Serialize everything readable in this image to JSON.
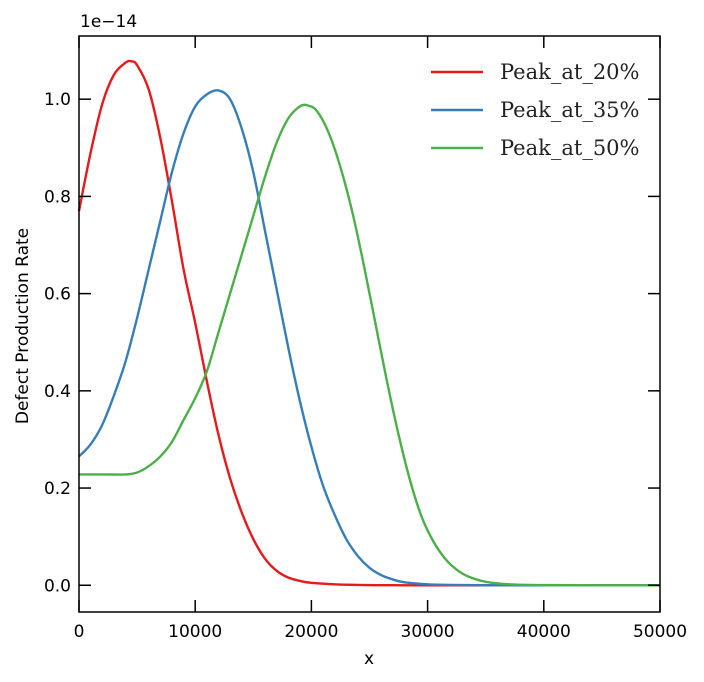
{
  "chart_data": {
    "type": "line",
    "title": "",
    "xlabel": "x",
    "ylabel": "Defect Production Rate",
    "y_offset_label": "1e−14",
    "xlim": [
      0,
      50000
    ],
    "ylim": [
      -0.055,
      1.13
    ],
    "x_ticks": [
      0,
      10000,
      20000,
      30000,
      40000,
      50000
    ],
    "x_tick_labels": [
      "0",
      "10000",
      "20000",
      "30000",
      "40000",
      "50000"
    ],
    "y_ticks": [
      0.0,
      0.2,
      0.4,
      0.6,
      0.8,
      1.0
    ],
    "y_tick_labels": [
      "0.0",
      "0.2",
      "0.4",
      "0.6",
      "0.8",
      "1.0"
    ],
    "grid": false,
    "legend_position": "top-right",
    "series": [
      {
        "name": "Peak_at_20%",
        "color": "#e41a1c",
        "x": [
          0,
          1000,
          2000,
          3000,
          4000,
          4500,
          5000,
          6000,
          7000,
          8000,
          9000,
          10000,
          11000,
          12000,
          13000,
          14000,
          15000,
          16000,
          17000,
          18000,
          19000,
          20000,
          22000,
          24000,
          26000,
          28000,
          30000,
          35000,
          40000,
          45000,
          50000
        ],
        "y": [
          0.77,
          0.89,
          0.99,
          1.05,
          1.075,
          1.078,
          1.07,
          1.02,
          0.92,
          0.79,
          0.65,
          0.54,
          0.42,
          0.31,
          0.22,
          0.15,
          0.095,
          0.055,
          0.03,
          0.016,
          0.009,
          0.005,
          0.002,
          0.0006,
          0.0002,
          0.0,
          0.0,
          0.0,
          0.0,
          0.0,
          0.0
        ]
      },
      {
        "name": "Peak_at_35%",
        "color": "#377eb8",
        "x": [
          0,
          1000,
          2000,
          3000,
          4000,
          5000,
          6000,
          7000,
          8000,
          9000,
          10000,
          11000,
          12000,
          13000,
          14000,
          15000,
          16000,
          17000,
          18000,
          19000,
          20000,
          21000,
          22000,
          23000,
          24000,
          25000,
          26000,
          27000,
          28000,
          30000,
          32000,
          35000,
          40000,
          45000,
          50000
        ],
        "y": [
          0.265,
          0.29,
          0.33,
          0.39,
          0.46,
          0.55,
          0.65,
          0.75,
          0.85,
          0.93,
          0.985,
          1.01,
          1.018,
          1.0,
          0.94,
          0.85,
          0.73,
          0.61,
          0.49,
          0.38,
          0.285,
          0.205,
          0.145,
          0.095,
          0.06,
          0.036,
          0.021,
          0.012,
          0.006,
          0.002,
          0.0006,
          0.0001,
          0.0,
          0.0,
          0.0
        ]
      },
      {
        "name": "Peak_at_50%",
        "color": "#4daf4a",
        "x": [
          0,
          2000,
          4000,
          5000,
          6000,
          7000,
          8000,
          9000,
          10000,
          11000,
          12000,
          13000,
          14000,
          15000,
          16000,
          17000,
          18000,
          19000,
          19700,
          20500,
          21500,
          22500,
          23500,
          24500,
          25500,
          26500,
          27500,
          28500,
          29500,
          30500,
          31500,
          32500,
          33500,
          35000,
          37000,
          40000,
          45000,
          50000
        ],
        "y": [
          0.228,
          0.228,
          0.228,
          0.232,
          0.245,
          0.265,
          0.295,
          0.34,
          0.385,
          0.44,
          0.52,
          0.6,
          0.68,
          0.76,
          0.84,
          0.91,
          0.96,
          0.985,
          0.987,
          0.975,
          0.93,
          0.86,
          0.77,
          0.66,
          0.54,
          0.42,
          0.31,
          0.215,
          0.14,
          0.09,
          0.055,
          0.032,
          0.018,
          0.007,
          0.002,
          0.0003,
          0.0,
          0.0
        ]
      }
    ]
  }
}
